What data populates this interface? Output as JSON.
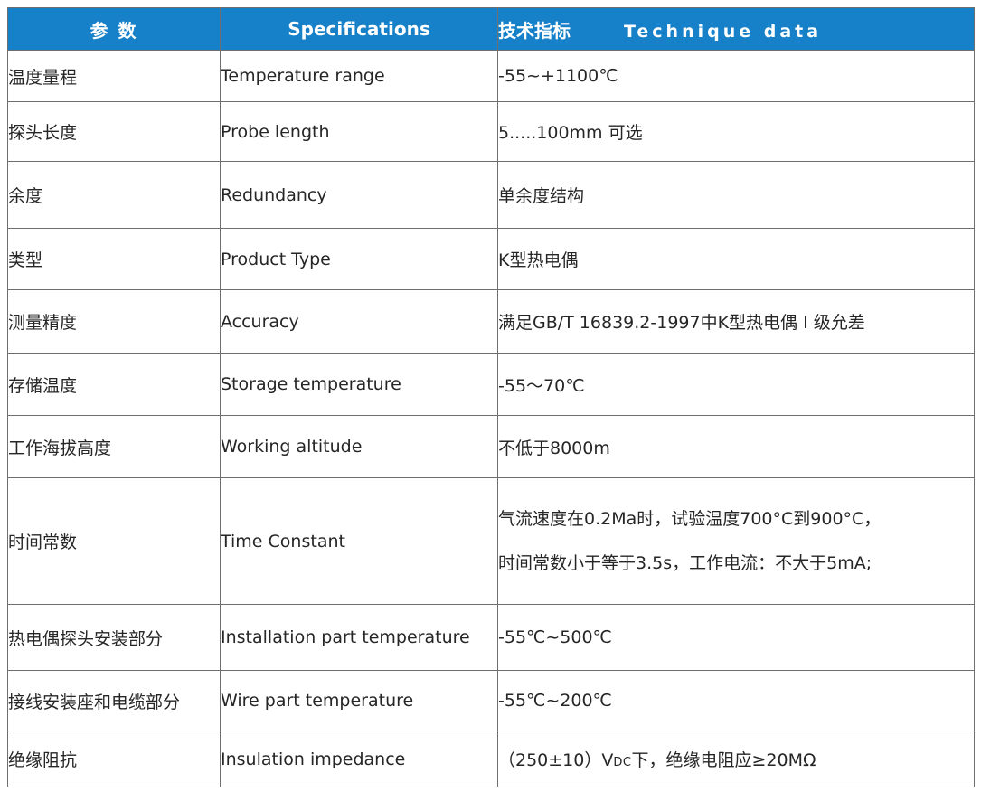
{
  "table": {
    "header": {
      "col1": "参  数",
      "col2": "Specifications",
      "col3_cn": "技术指标",
      "col3_en": "Technique data"
    },
    "rows": [
      {
        "cn": "温度量程",
        "en": "Temperature range",
        "value": "-55~+1100℃"
      },
      {
        "cn": "探头长度",
        "en": "Probe length",
        "value": "5.....100mm 可选"
      },
      {
        "cn": "余度",
        "en": "Redundancy",
        "value": "单余度结构"
      },
      {
        "cn": "类型",
        "en": "Product Type",
        "value": "K型热电偶"
      },
      {
        "cn": "测量精度",
        "en": "Accuracy",
        "value": "满足GB/T 16839.2-1997中K型热电偶 Ⅰ 级允差"
      },
      {
        "cn": "存储温度",
        "en": "Storage temperature",
        "value": "-55～70℃"
      },
      {
        "cn": "工作海拔高度",
        "en": "Working altitude",
        "value": "不低于8000m"
      },
      {
        "cn": "时间常数",
        "en": "Time Constant",
        "value_lines": [
          "气流速度在0.2Ma时，试验温度700°C到900°C，",
          "时间常数小于等于3.5s，工作电流：不大于5mA;"
        ]
      },
      {
        "cn": "热电偶探头安装部分",
        "en": "Installation part temperature",
        "value": "-55℃~500℃"
      },
      {
        "cn": "接线安装座和电缆部分",
        "en": "Wire part temperature",
        "value": "-55℃~200℃"
      },
      {
        "cn": "绝缘阻抗",
        "en": "Insulation impedance",
        "value_pre": "（250±10）V",
        "value_sub": "DC",
        "value_post": "下，绝缘电阻应≥20MΩ"
      }
    ]
  },
  "colors": {
    "header_bg": "#1681c8",
    "header_text": "#ffffff",
    "body_text": "#262626",
    "border": "#6f6f6f"
  }
}
